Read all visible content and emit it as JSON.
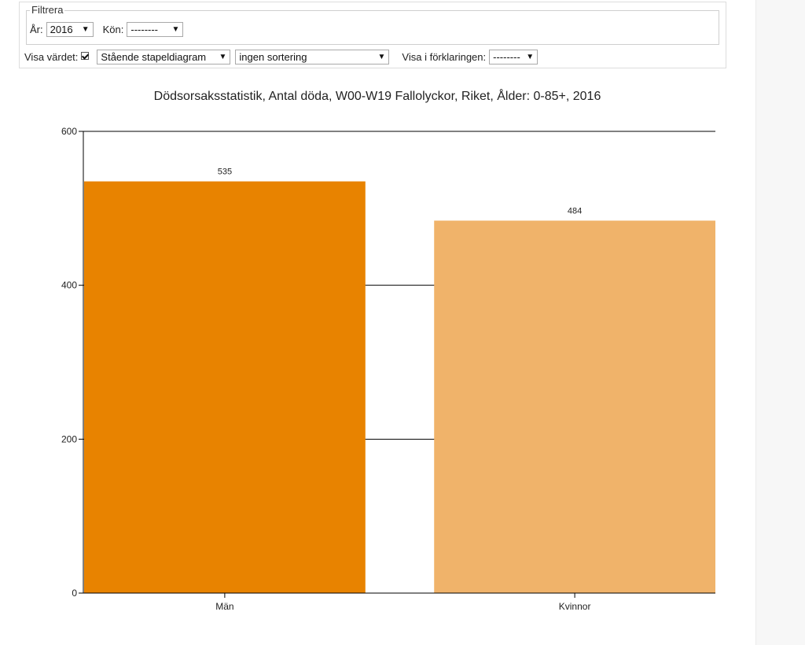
{
  "filter": {
    "legend": "Filtrera",
    "year_label": "År:",
    "year_value": "2016",
    "sex_label": "Kön:",
    "sex_value": "--------"
  },
  "options": {
    "show_value_label": "Visa värdet:",
    "show_value_checked": true,
    "chart_type_value": "Stående stapeldiagram",
    "sort_value": "ingen sortering",
    "legend_label": "Visa i förklaringen:",
    "legend_value": "--------"
  },
  "colors": {
    "bar_men": "#e88300",
    "bar_women": "#f0b36a",
    "axis": "#000000"
  },
  "chart_data": {
    "type": "bar",
    "title": "Dödsorsaksstatistik, Antal döda, W00-W19 Fallolyckor, Riket, Ålder: 0-85+, 2016",
    "categories": [
      "Män",
      "Kvinnor"
    ],
    "values": [
      535,
      484
    ],
    "xlabel": "",
    "ylabel": "",
    "ylim": [
      0,
      600
    ],
    "yticks": [
      0,
      200,
      400,
      600
    ],
    "grid": true,
    "data_labels": true
  }
}
